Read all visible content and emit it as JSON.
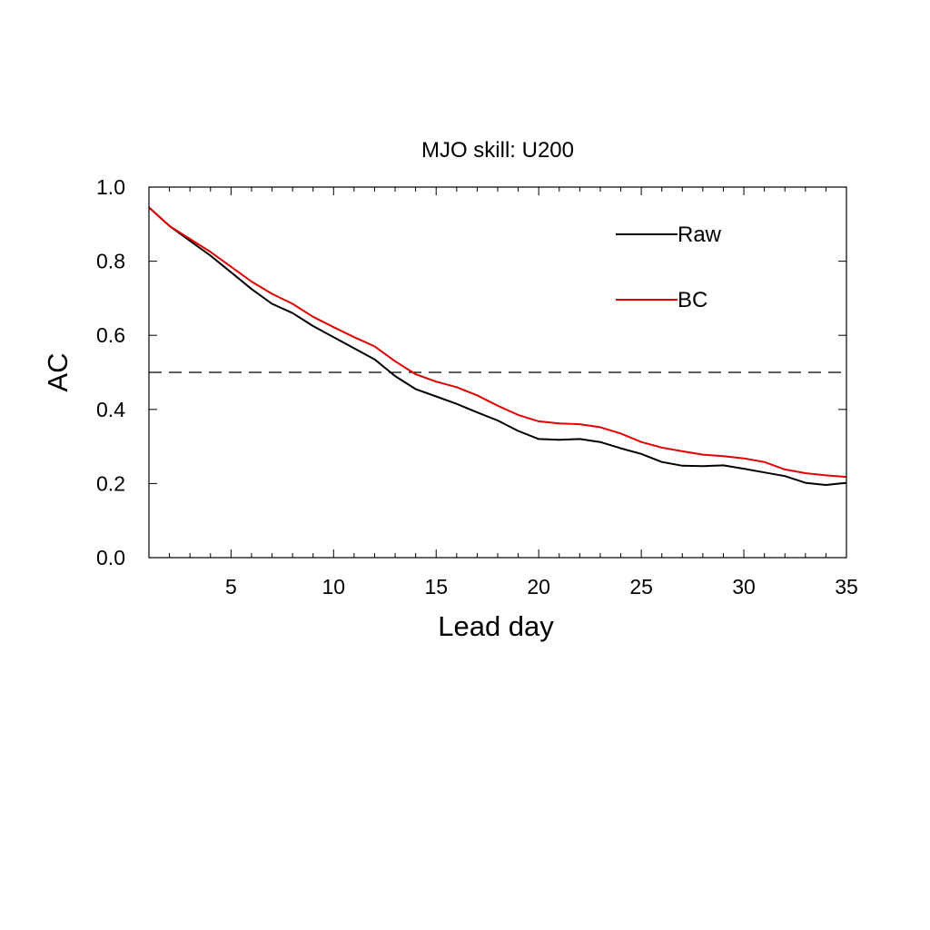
{
  "chart_data": {
    "type": "line",
    "title": "MJO skill: U200",
    "xlabel": "Lead day",
    "ylabel": "AC",
    "xlim": [
      1,
      35
    ],
    "ylim": [
      0.0,
      1.0
    ],
    "x_major_ticks": [
      5,
      10,
      15,
      20,
      25,
      30,
      35
    ],
    "x_tick_labels": [
      "5",
      "10",
      "15",
      "20",
      "25",
      "30",
      "35"
    ],
    "y_major_ticks": [
      0.0,
      0.2,
      0.4,
      0.6,
      0.8,
      1.0
    ],
    "y_tick_labels": [
      "0.0",
      "0.2",
      "0.4",
      "0.6",
      "0.8",
      "1.0"
    ],
    "grid": false,
    "legend_position": "top-right",
    "reference_line": {
      "y": 0.5,
      "style": "dashed",
      "color": "#000000"
    },
    "x": [
      1,
      2,
      3,
      4,
      5,
      6,
      7,
      8,
      9,
      10,
      11,
      12,
      13,
      14,
      15,
      16,
      17,
      18,
      19,
      20,
      21,
      22,
      23,
      24,
      25,
      26,
      27,
      28,
      29,
      30,
      31,
      32,
      33,
      34,
      35
    ],
    "series": [
      {
        "name": "Raw",
        "color": "#000000",
        "values": [
          0.945,
          0.895,
          0.855,
          0.815,
          0.77,
          0.725,
          0.685,
          0.66,
          0.625,
          0.595,
          0.565,
          0.535,
          0.49,
          0.455,
          0.435,
          0.415,
          0.392,
          0.37,
          0.342,
          0.32,
          0.318,
          0.32,
          0.312,
          0.295,
          0.28,
          0.258,
          0.248,
          0.247,
          0.249,
          0.24,
          0.23,
          0.22,
          0.202,
          0.196,
          0.202
        ]
      },
      {
        "name": "BC",
        "color": "#e00000",
        "values": [
          0.945,
          0.895,
          0.86,
          0.825,
          0.785,
          0.745,
          0.712,
          0.685,
          0.65,
          0.622,
          0.595,
          0.57,
          0.53,
          0.495,
          0.475,
          0.46,
          0.438,
          0.41,
          0.385,
          0.368,
          0.362,
          0.36,
          0.352,
          0.335,
          0.312,
          0.297,
          0.287,
          0.278,
          0.274,
          0.268,
          0.258,
          0.238,
          0.228,
          0.222,
          0.218
        ]
      }
    ]
  }
}
